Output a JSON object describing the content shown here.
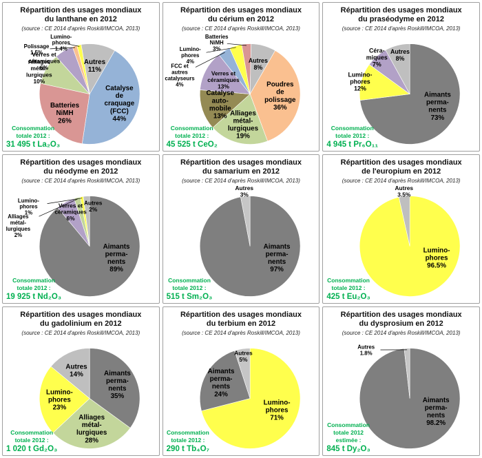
{
  "page": {
    "background": "#FFFFFF",
    "accent_green": "#00B050",
    "panel_border": "#9E9E9E"
  },
  "source_note": "(source : CE 2014 d'après Roskill/IMCOA, 2013)",
  "chart_data": [
    {
      "type": "pie",
      "element": "lanthane",
      "title": "Répartition des usages mondiaux du lanthane en 2012",
      "title_lines": [
        "Répartition des usages mondiaux",
        "du lanthane en 2012"
      ],
      "source": "(source : CE 2014 d'après Roskill/IMCOA, 2013)",
      "total_label": "Consommation\ntotale 2012 :",
      "total_value": "31 495 t La₂O₃",
      "start_angle": 30,
      "segments": [
        {
          "label": "Catalyse de craquage (FCC)",
          "value": 44,
          "color": "#95B3D7",
          "lbl": {
            "lines": [
              "Catalyse",
              "de",
              "craquage",
              "(FCC)",
              "44%"
            ],
            "a": 107,
            "r": 0.62,
            "fs": 10
          }
        },
        {
          "label": "Batteries NiMH",
          "value": 26,
          "color": "#D99694",
          "lbl": {
            "lines": [
              "Batteries",
              "NiMH",
              "26%"
            ],
            "a": 233,
            "r": 0.62,
            "fs": 10
          }
        },
        {
          "label": "Alliages métallurgiques",
          "value": 10,
          "color": "#C3D69B",
          "lbl": {
            "lines": [
              "Alliages",
              "métal-",
              "lurgiques",
              "10%"
            ],
            "a": 294,
            "r": 1.1,
            "fs": 8.5
          }
        },
        {
          "label": "Verres et céramiques",
          "value": 6,
          "color": "#B2A1C7",
          "lbl": {
            "lines": [
              "Verres et",
              "céramiques",
              "6%"
            ],
            "a": 306,
            "r": 1.12,
            "fs": 8.5
          }
        },
        {
          "label": "Polissage",
          "value": 1.5,
          "color": "#FAC090",
          "lbl": {
            "lines": [
              "Polissage",
              "1.5%"
            ],
            "a": 310,
            "r": 1.38,
            "fs": 8,
            "line": true
          }
        },
        {
          "label": "Luminophores",
          "value": 1.4,
          "color": "#FFFF4D",
          "lbl": {
            "lines": [
              "Lumino-",
              "phores",
              "1.4%"
            ],
            "a": 331,
            "r": 1.17,
            "fs": 8,
            "line": true
          }
        },
        {
          "label": "Autres",
          "value": 11,
          "color": "#BFBFBF",
          "lbl": {
            "lines": [
              "Autres",
              "11%"
            ],
            "a": 10,
            "r": 0.58,
            "fs": 10
          }
        }
      ]
    },
    {
      "type": "pie",
      "element": "cerium",
      "title": "Répartition des usages mondiaux du cérium en 2012",
      "title_lines": [
        "Répartition des usages mondiaux",
        "du cérium en 2012"
      ],
      "source": "(source : CE 2014 d'après Roskill/IMCOA, 2013)",
      "total_label": "Consommation\ntotale 2012 :",
      "total_value": "45 525 t CeO₂",
      "start_angle": 30,
      "segments": [
        {
          "label": "Poudres de polissage",
          "value": 36,
          "color": "#FAC090",
          "lbl": {
            "lines": [
              "Poudres",
              "de",
              "polissage",
              "36%"
            ],
            "a": 93,
            "r": 0.6,
            "fs": 10
          }
        },
        {
          "label": "Alliages métallurgiques",
          "value": 19,
          "color": "#C3D69B",
          "lbl": {
            "lines": [
              "Alliages",
              "métal-",
              "lurgiques",
              "19%"
            ],
            "a": 193,
            "r": 0.62,
            "fs": 10
          }
        },
        {
          "label": "Catalyse automobile",
          "value": 13,
          "color": "#948A54",
          "lbl": {
            "lines": [
              "Catalyse",
              "auto-",
              "mobile",
              "13%"
            ],
            "a": 251,
            "r": 0.63,
            "fs": 10
          }
        },
        {
          "label": "Verres et céramiques",
          "value": 13,
          "color": "#B2A1C7",
          "lbl": {
            "lines": [
              "Verres et",
              "céramiques",
              "13%"
            ],
            "a": 298,
            "r": 0.6,
            "fs": 8.5
          }
        },
        {
          "label": "FCC et autres catalyseurs",
          "value": 4,
          "color": "#95B3D7",
          "lbl": {
            "lines": [
              "FCC et",
              "autres",
              "catalyseurs",
              "4%"
            ],
            "a": 285,
            "r": 1.45,
            "fs": 8,
            "line": true
          }
        },
        {
          "label": "Luminophores",
          "value": 4,
          "color": "#FFFF4D",
          "lbl": {
            "lines": [
              "Lumino-",
              "phores",
              "4%"
            ],
            "a": 303,
            "r": 1.42,
            "fs": 8,
            "line": true
          }
        },
        {
          "label": "Batteries NiMH",
          "value": 3,
          "color": "#D99694",
          "lbl": {
            "lines": [
              "Batteries",
              "NiMH",
              "3%"
            ],
            "a": 327,
            "r": 1.22,
            "fs": 8,
            "line": true
          }
        },
        {
          "label": "Autres",
          "value": 8,
          "color": "#BFBFBF",
          "lbl": {
            "lines": [
              "Autres",
              "8%"
            ],
            "a": 15,
            "r": 0.62,
            "fs": 9
          }
        }
      ]
    },
    {
      "type": "pie",
      "element": "praseodyme",
      "title": "Répartition des usages mondiaux du praséodyme en 2012",
      "title_lines": [
        "Répartition des usages mondiaux",
        "du praséodyme en 2012"
      ],
      "source": "(source : CE 2014 d'après Roskill/IMCOA, 2013)",
      "total_label": "Consommation\ntotale 2012 :",
      "total_value": "4 945 t Pr₆O₁₁",
      "start_angle": 0,
      "segments": [
        {
          "label": "Aimants permanents",
          "value": 73,
          "color": "#7F7F7F",
          "lbl": {
            "lines": [
              "Aimants",
              "perma-",
              "nents",
              "73%"
            ],
            "a": 113,
            "r": 0.6,
            "fs": 10
          }
        },
        {
          "label": "Luminophores",
          "value": 12,
          "color": "#FFFF4D",
          "lbl": {
            "lines": [
              "Lumino-",
              "phores",
              "12%"
            ],
            "a": 284,
            "r": 1.02,
            "fs": 9
          }
        },
        {
          "label": "Céramiques",
          "value": 7,
          "color": "#B2A1C7",
          "lbl": {
            "lines": [
              "Céra-",
              "miques",
              "7%"
            ],
            "a": 318,
            "r": 0.98,
            "fs": 9
          }
        },
        {
          "label": "Autres",
          "value": 8,
          "color": "#BFBFBF",
          "lbl": {
            "lines": [
              "Autres",
              "8%"
            ],
            "a": 346,
            "r": 0.8,
            "fs": 9
          }
        }
      ]
    },
    {
      "type": "pie",
      "element": "neodyme",
      "title": "Répartition des usages mondiaux du néodyme en 2012",
      "title_lines": [
        "Répartition des usages mondiaux",
        "du néodyme en 2012"
      ],
      "source": "(source : CE 2014 d'après Roskill/IMCOA, 2013)",
      "total_label": "Consommation\ntotale 2012 :",
      "total_value": "19 925 t Nd₂O₃",
      "start_angle": 0,
      "segments": [
        {
          "label": "Aimants permanents",
          "value": 89,
          "color": "#7F7F7F",
          "lbl": {
            "lines": [
              "Aimants",
              "perma-",
              "nents",
              "89%"
            ],
            "a": 113,
            "r": 0.58,
            "fs": 10
          }
        },
        {
          "label": "Verres et céramiques",
          "value": 6,
          "color": "#B2A1C7",
          "lbl": {
            "lines": [
              "Verres et",
              "céramiques",
              "6%"
            ],
            "a": 331,
            "r": 0.78,
            "fs": 8.5
          }
        },
        {
          "label": "Alliages métallurgiques",
          "value": 2,
          "color": "#C3D69B",
          "lbl": {
            "lines": [
              "Alliages",
              "métal-",
              "lurgiques",
              "2%"
            ],
            "a": 286,
            "r": 1.48,
            "fs": 8,
            "line": true
          }
        },
        {
          "label": "Luminophores",
          "value": 1,
          "color": "#FFFF4D",
          "lbl": {
            "lines": [
              "Lumino-",
              "phores",
              "1%"
            ],
            "a": 303,
            "r": 1.45,
            "fs": 8,
            "line": true
          }
        },
        {
          "label": "Autres",
          "value": 2,
          "color": "#BFBFBF",
          "lbl": {
            "lines": [
              "Autres",
              "2%"
            ],
            "a": 5,
            "r": 0.8,
            "fs": 8.5
          }
        }
      ]
    },
    {
      "type": "pie",
      "element": "samarium",
      "title": "Répartition des usages mondiaux du samarium en 2012",
      "title_lines": [
        "Répartition des usages mondiaux",
        "du samarium en 2012"
      ],
      "source": "(source : CE 2014 d'après Roskill/IMCOA, 2013)",
      "total_label": "Consommation\ntotale 2012 :",
      "total_value": "515 t Sm₂O₃",
      "start_angle": 0,
      "segments": [
        {
          "label": "Aimants permanents",
          "value": 97,
          "color": "#7F7F7F",
          "lbl": {
            "lines": [
              "Aimants",
              "perma-",
              "nents",
              "97%"
            ],
            "a": 113,
            "r": 0.58,
            "fs": 10
          }
        },
        {
          "label": "Autres",
          "value": 3,
          "color": "#C6C6C6",
          "lbl": {
            "lines": [
              "Autres",
              "3%"
            ],
            "a": 354,
            "r": 1.1,
            "fs": 8.5
          }
        }
      ]
    },
    {
      "type": "pie",
      "element": "europium",
      "title": "Répartition des usages mondiaux de l'europium en 2012",
      "title_lines": [
        "Répartition des usages mondiaux",
        "de l'europium en 2012"
      ],
      "source": "(source : CE 2014 d'après Roskill/IMCOA, 2013)",
      "total_label": "Consommation\ntotale 2012 :",
      "total_value": "425 t Eu₂O₃",
      "start_angle": 0,
      "segments": [
        {
          "label": "Luminophores",
          "value": 96.5,
          "color": "#FFFF4D",
          "lbl": {
            "lines": [
              "Lumino-",
              "phores",
              "96.5%"
            ],
            "a": 113,
            "r": 0.58,
            "fs": 10
          }
        },
        {
          "label": "Autres",
          "value": 3.5,
          "color": "#BFBFBF",
          "lbl": {
            "lines": [
              "Autres",
              "3.5%"
            ],
            "a": 354,
            "r": 1.1,
            "fs": 8.5
          }
        }
      ]
    },
    {
      "type": "pie",
      "element": "gadolinium",
      "title": "Répartition des usages mondiaux du gadolinium en 2012",
      "title_lines": [
        "Répartition des usages mondiaux",
        "du gadolinium en 2012"
      ],
      "source": "(source : CE 2014 d'après Roskill/IMCOA, 2013)",
      "total_label": "Consommation\ntotale 2012 :",
      "total_value": "1 020 t Gd₂O₃",
      "start_angle": 0,
      "segments": [
        {
          "label": "Aimants permanents",
          "value": 35,
          "color": "#7F7F7F",
          "lbl": {
            "lines": [
              "Aimants",
              "perma-",
              "nents",
              "35%"
            ],
            "a": 63,
            "r": 0.62,
            "fs": 10
          }
        },
        {
          "label": "Alliages métallurgiques",
          "value": 28,
          "color": "#C3D69B",
          "lbl": {
            "lines": [
              "Alliages",
              "métal-",
              "lurgiques",
              "28%"
            ],
            "a": 176,
            "r": 0.6,
            "fs": 10
          }
        },
        {
          "label": "Luminophores",
          "value": 23,
          "color": "#FFFF4D",
          "lbl": {
            "lines": [
              "Lumino-",
              "phores",
              "23%"
            ],
            "a": 268,
            "r": 0.6,
            "fs": 10
          }
        },
        {
          "label": "Autres",
          "value": 14,
          "color": "#BFBFBF",
          "lbl": {
            "lines": [
              "Autres",
              "14%"
            ],
            "a": 335,
            "r": 0.62,
            "fs": 10
          }
        }
      ]
    },
    {
      "type": "pie",
      "element": "terbium",
      "title": "Répartition des usages mondiaux du terbium en 2012",
      "title_lines": [
        "Répartition des usages mondiaux",
        "du terbium en 2012"
      ],
      "source": "(source : CE 2014 d'après Roskill/IMCOA, 2013)",
      "total_label": "Consommation\ntotale 2012 :",
      "total_value": "290 t Tb₄O₇",
      "start_angle": 0,
      "segments": [
        {
          "label": "Luminophores",
          "value": 71,
          "color": "#FFFF4D",
          "lbl": {
            "lines": [
              "Lumino-",
              "phores",
              "71%"
            ],
            "a": 113,
            "r": 0.58,
            "fs": 10
          }
        },
        {
          "label": "Aimants permanents",
          "value": 24,
          "color": "#7F7F7F",
          "lbl": {
            "lines": [
              "Aimants",
              "perma-",
              "nents",
              "24%"
            ],
            "a": 299,
            "r": 0.66,
            "fs": 10
          }
        },
        {
          "label": "Autres",
          "value": 5,
          "color": "#C6C6C6",
          "lbl": {
            "lines": [
              "Autres",
              "5%"
            ],
            "a": 351,
            "r": 0.85,
            "fs": 8.5
          }
        }
      ]
    },
    {
      "type": "pie",
      "element": "dysprosium",
      "title": "Répartition des usages mondiaux du dysprosium en 2012",
      "title_lines": [
        "Répartition des usages mondiaux",
        "du dysprosium en 2012"
      ],
      "source": "(source : CE 2014 d'après Roskill/IMCOA, 2013)",
      "total_label": "Consommation\ntotale 2012\nestimée :",
      "total_value": "845 t Dy₂O₃",
      "start_angle": 0,
      "segments": [
        {
          "label": "Aimants permanents",
          "value": 98.2,
          "color": "#7F7F7F",
          "lbl": {
            "lines": [
              "Aimants",
              "perma-",
              "nents",
              "98.2%"
            ],
            "a": 116,
            "r": 0.58,
            "fs": 10
          }
        },
        {
          "label": "Autres",
          "value": 1.8,
          "color": "#C6C6C6",
          "lbl": {
            "lines": [
              "Autres",
              "1.8%"
            ],
            "a": 318,
            "r": 1.3,
            "fs": 8,
            "line": true
          }
        }
      ]
    }
  ]
}
